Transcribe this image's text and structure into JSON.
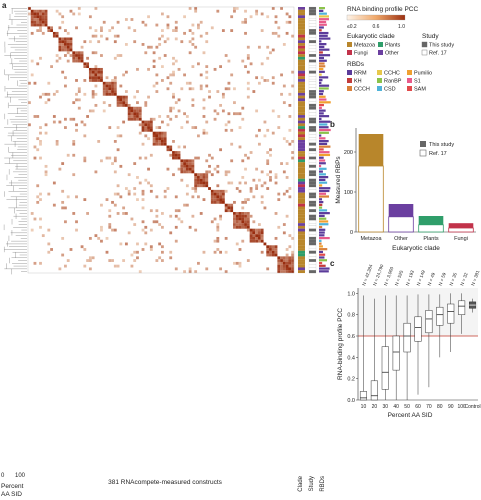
{
  "panels": {
    "a": "a",
    "b": "b",
    "c": "c"
  },
  "heatmap": {
    "colorbar_title": "RNA binding profile PCC",
    "colorbar_ticks": [
      "≤0.2",
      "0.6",
      "1.0"
    ],
    "x_label": "381 RNAcompete-measured constructs",
    "dendro_label_line1": "Percent",
    "dendro_label_line2": "AA SID",
    "dendro_ticks": [
      "0",
      "100"
    ],
    "column_labels": [
      "Clade",
      "Study",
      "RBDs"
    ],
    "legend_clade_title": "Eukaryotic clade",
    "legend_study_title": "Study",
    "legend_rbd_title": "RBDs",
    "clades": [
      {
        "name": "Metazoa",
        "color": "#b8862b"
      },
      {
        "name": "Plants",
        "color": "#2f9e6a"
      },
      {
        "name": "Fungi",
        "color": "#c2324a"
      },
      {
        "name": "Other",
        "color": "#6b3fa0"
      }
    ],
    "studies": [
      {
        "name": "This study",
        "color": "#666666"
      },
      {
        "name": "Ref. 17",
        "color": "#ffffff"
      }
    ],
    "rbds": [
      {
        "name": "RRM",
        "color": "#5b3b9a"
      },
      {
        "name": "CCHC",
        "color": "#e7c84a"
      },
      {
        "name": "Pumilio",
        "color": "#f0a030"
      },
      {
        "name": "KH",
        "color": "#c23b3b"
      },
      {
        "name": "RanBP",
        "color": "#8bc34a"
      },
      {
        "name": "S1",
        "color": "#e85a8a"
      },
      {
        "name": "CCCH",
        "color": "#d9803a"
      },
      {
        "name": "CSD",
        "color": "#4fb3d9"
      },
      {
        "name": "SAM",
        "color": "#e14a4a"
      }
    ]
  },
  "chart_data": [
    {
      "type": "bar",
      "panel": "b",
      "categories": [
        "Metazoa",
        "Other",
        "Plants",
        "Fungi"
      ],
      "colors": [
        "#b8862b",
        "#6b3fa0",
        "#2f9e6a",
        "#c2324a"
      ],
      "series": [
        {
          "name": "Ref. 17",
          "values": [
            165,
            38,
            18,
            10
          ]
        },
        {
          "name": "This study",
          "values": [
            80,
            32,
            22,
            12
          ]
        }
      ],
      "xlabel": "Eukaryotic clade",
      "ylabel": "Measured RBPs",
      "yticks": [
        0,
        100,
        200
      ],
      "ylim": [
        0,
        260
      ],
      "legend": "top-right"
    },
    {
      "type": "box",
      "panel": "c",
      "categories": [
        "10",
        "20",
        "30",
        "40",
        "50",
        "60",
        "70",
        "80",
        "90",
        "100",
        "Control"
      ],
      "n_labels": [
        "N = 42,384",
        "N = 24,790",
        "N = 3,060",
        "N = 525",
        "N = 193",
        "N = 149",
        "N = 49",
        "N = 59",
        "N = 35",
        "N = 32",
        "N = 381"
      ],
      "boxes": [
        {
          "min": 0.0,
          "q1": 0.0,
          "median": 0.02,
          "q3": 0.08,
          "max": 0.98
        },
        {
          "min": 0.0,
          "q1": 0.0,
          "median": 0.04,
          "q3": 0.18,
          "max": 0.95
        },
        {
          "min": 0.0,
          "q1": 0.1,
          "median": 0.26,
          "q3": 0.5,
          "max": 0.98
        },
        {
          "min": 0.0,
          "q1": 0.28,
          "median": 0.45,
          "q3": 0.6,
          "max": 0.98
        },
        {
          "min": 0.0,
          "q1": 0.45,
          "median": 0.6,
          "q3": 0.72,
          "max": 0.98
        },
        {
          "min": 0.05,
          "q1": 0.55,
          "median": 0.68,
          "q3": 0.78,
          "max": 0.99
        },
        {
          "min": 0.12,
          "q1": 0.63,
          "median": 0.76,
          "q3": 0.84,
          "max": 0.99
        },
        {
          "min": 0.4,
          "q1": 0.7,
          "median": 0.8,
          "q3": 0.87,
          "max": 0.99
        },
        {
          "min": 0.45,
          "q1": 0.72,
          "median": 0.83,
          "q3": 0.9,
          "max": 1.0
        },
        {
          "min": 0.62,
          "q1": 0.8,
          "median": 0.88,
          "q3": 0.93,
          "max": 1.0
        },
        {
          "min": 0.82,
          "q1": 0.86,
          "median": 0.89,
          "q3": 0.92,
          "max": 0.95
        }
      ],
      "threshold": 0.6,
      "xlabel": "Percent AA SID",
      "ylabel": "RNA-binding profile PCC",
      "yticks": [
        0,
        0.2,
        0.4,
        0.6,
        0.8,
        1.0
      ],
      "ylim": [
        0,
        1.05
      ]
    }
  ]
}
